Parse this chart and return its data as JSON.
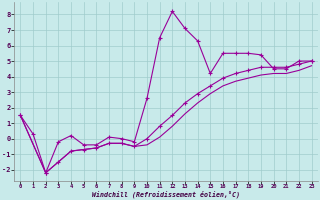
{
  "xlabel": "Windchill (Refroidissement éolien,°C)",
  "xlim": [
    -0.5,
    23.5
  ],
  "ylim": [
    -2.7,
    8.8
  ],
  "yticks": [
    -2,
    -1,
    0,
    1,
    2,
    3,
    4,
    5,
    6,
    7,
    8
  ],
  "xticks": [
    0,
    1,
    2,
    3,
    4,
    5,
    6,
    7,
    8,
    9,
    10,
    11,
    12,
    13,
    14,
    15,
    16,
    17,
    18,
    19,
    20,
    21,
    22,
    23
  ],
  "background_color": "#c8eaea",
  "line_color": "#990099",
  "grid_color": "#a0cccc",
  "line1_x": [
    0,
    1,
    2,
    3,
    4,
    5,
    6,
    7,
    8,
    9,
    10,
    11,
    12,
    13,
    14,
    15,
    16,
    17,
    18,
    19,
    20,
    21,
    22,
    23
  ],
  "line1_y": [
    1.5,
    0.3,
    -2.2,
    -0.2,
    0.2,
    -0.4,
    -0.4,
    0.1,
    0.0,
    -0.2,
    2.6,
    6.5,
    8.2,
    7.1,
    6.3,
    4.2,
    5.5,
    5.5,
    5.5,
    5.4,
    4.5,
    4.5,
    5.0,
    5.0
  ],
  "line2_x": [
    0,
    2,
    3,
    4,
    5,
    6,
    7,
    8,
    9,
    10,
    11,
    12,
    13,
    14,
    15,
    16,
    17,
    18,
    19,
    20,
    21,
    22,
    23
  ],
  "line2_y": [
    1.5,
    -2.2,
    -1.5,
    -0.8,
    -0.7,
    -0.6,
    -0.3,
    -0.3,
    -0.5,
    0.0,
    0.8,
    1.5,
    2.3,
    2.9,
    3.4,
    3.9,
    4.2,
    4.4,
    4.6,
    4.6,
    4.6,
    4.8,
    5.0
  ],
  "line3_x": [
    0,
    2,
    3,
    4,
    5,
    6,
    7,
    8,
    9,
    10,
    11,
    12,
    13,
    14,
    15,
    16,
    17,
    18,
    19,
    20,
    21,
    22,
    23
  ],
  "line3_y": [
    1.5,
    -2.2,
    -1.5,
    -0.8,
    -0.7,
    -0.6,
    -0.3,
    -0.3,
    -0.5,
    -0.4,
    0.1,
    0.8,
    1.6,
    2.3,
    2.9,
    3.4,
    3.7,
    3.9,
    4.1,
    4.2,
    4.2,
    4.4,
    4.7
  ]
}
